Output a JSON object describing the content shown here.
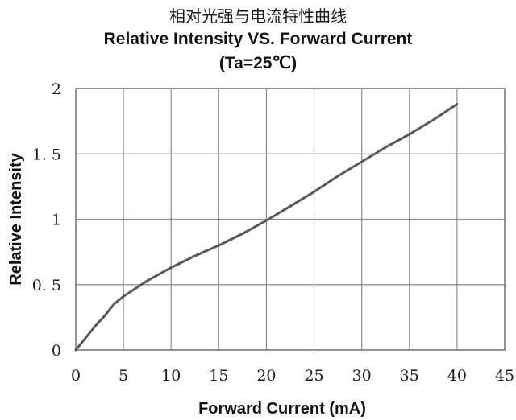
{
  "header": {
    "title_cn": "相对光强与电流特性曲线",
    "title_en": "Relative Intensity VS. Forward Current",
    "subtitle": "(Ta=25℃)"
  },
  "colors": {
    "line": "#595959",
    "grid": "#8c8c8c",
    "frame": "#7a7a7a",
    "text": "#1a1a1a"
  },
  "chart_data": {
    "type": "line",
    "title": "Relative Intensity VS. Forward Current",
    "subtitle": "(Ta=25℃)",
    "xlabel": "Forward Current (mA)",
    "ylabel": "Relative  Intensity",
    "xlim": [
      0,
      45
    ],
    "ylim": [
      0,
      2
    ],
    "x_ticks": [
      0,
      5,
      10,
      15,
      20,
      25,
      30,
      35,
      40,
      45
    ],
    "x_tick_labels": [
      "0",
      "5",
      "10",
      "15",
      "20",
      "25",
      "30",
      "35",
      "40",
      "45"
    ],
    "y_ticks": [
      0,
      0.5,
      1,
      1.5,
      2
    ],
    "y_tick_labels": [
      "0",
      "0. 5",
      "1",
      "1. 5",
      "2"
    ],
    "grid": true,
    "series": [
      {
        "x": [
          0,
          1,
          2,
          3,
          4,
          5,
          7.5,
          10,
          12.5,
          15,
          17.5,
          20,
          22.5,
          25,
          27.5,
          30,
          32.5,
          35,
          37.5,
          40
        ],
        "y": [
          0,
          0.09,
          0.18,
          0.26,
          0.35,
          0.41,
          0.53,
          0.63,
          0.72,
          0.8,
          0.89,
          0.99,
          1.1,
          1.21,
          1.33,
          1.44,
          1.55,
          1.65,
          1.76,
          1.88
        ]
      }
    ]
  }
}
